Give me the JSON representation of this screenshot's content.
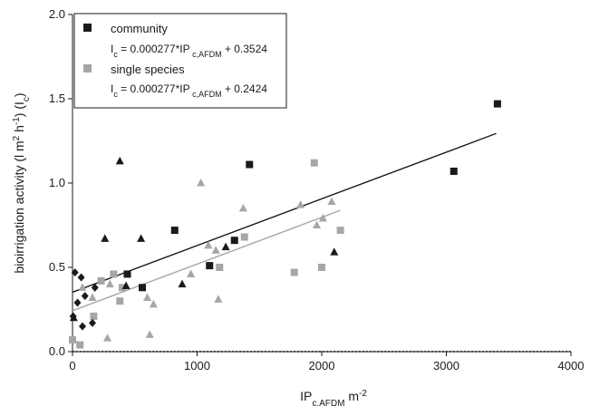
{
  "chart_data": {
    "type": "scatter",
    "xlabel": "IPc,AFDM m-2",
    "xlabel_parts": {
      "base": "IP",
      "sub": "c,AFDM",
      "unit": " m",
      "sup": "-2"
    },
    "ylabel": "bioirrigation activity (l m2 h-1) (Ic)",
    "ylabel_parts": [
      "bioirrigation activity (l m",
      "2",
      " h",
      "-1",
      ") (I",
      "c",
      ")"
    ],
    "xlim": [
      0,
      4000
    ],
    "ylim": [
      0,
      2.0
    ],
    "x_ticks": [
      0,
      1000,
      2000,
      3000,
      4000
    ],
    "x_tick_labels": [
      "0",
      "1000",
      "2000",
      "3000",
      "4000"
    ],
    "y_ticks": [
      0,
      0.5,
      1.0,
      1.5,
      2.0
    ],
    "y_tick_labels": [
      "0.0",
      "0.5",
      "1.0",
      "1.5",
      "2.0"
    ],
    "legend_placement": "top-left",
    "legend": [
      {
        "name": "community",
        "equation": {
          "i": "I",
          "isub": "c",
          "mid": " = 0.000277*IP",
          "ipsub": " c,AFDM",
          "tail": " + 0.3524"
        }
      },
      {
        "name": "single species",
        "equation": {
          "i": "I",
          "isub": "c",
          "mid": " = 0.000277*IP",
          "ipsub": " c,AFDM",
          "tail": " + 0.2424"
        }
      }
    ],
    "series": [
      {
        "name": "community",
        "color": "#1a1a1a",
        "marker": "square",
        "points": [
          [
            440,
            0.46
          ],
          [
            560,
            0.38
          ],
          [
            820,
            0.72
          ],
          [
            1100,
            0.51
          ],
          [
            1300,
            0.66
          ],
          [
            1420,
            1.11
          ],
          [
            3060,
            1.07
          ],
          [
            3410,
            1.47
          ]
        ],
        "fit": {
          "slope": 0.000277,
          "intercept": 0.3524,
          "x_range": [
            0,
            3400
          ]
        }
      },
      {
        "name": "single species",
        "color": "#a6a6a6",
        "marker": "square",
        "points": [
          [
            0,
            0.07
          ],
          [
            60,
            0.04
          ],
          [
            170,
            0.21
          ],
          [
            230,
            0.42
          ],
          [
            330,
            0.46
          ],
          [
            380,
            0.3
          ],
          [
            400,
            0.38
          ],
          [
            1180,
            0.5
          ],
          [
            1380,
            0.68
          ],
          [
            1780,
            0.47
          ],
          [
            1940,
            1.12
          ],
          [
            2000,
            0.5
          ],
          [
            2150,
            0.72
          ]
        ],
        "fit": {
          "slope": 0.000277,
          "intercept": 0.2424,
          "x_range": [
            0,
            2150
          ]
        }
      },
      {
        "name": "",
        "color": "#1a1a1a",
        "marker": "triangle",
        "points": [
          [
            10,
            0.2
          ],
          [
            260,
            0.67
          ],
          [
            380,
            1.13
          ],
          [
            430,
            0.39
          ],
          [
            550,
            0.67
          ],
          [
            880,
            0.4
          ],
          [
            1230,
            0.62
          ],
          [
            2100,
            0.59
          ]
        ]
      },
      {
        "name": "",
        "color": "#a6a6a6",
        "marker": "triangle",
        "points": [
          [
            5,
            0.07
          ],
          [
            80,
            0.38
          ],
          [
            160,
            0.32
          ],
          [
            280,
            0.08
          ],
          [
            300,
            0.4
          ],
          [
            600,
            0.32
          ],
          [
            620,
            0.1
          ],
          [
            650,
            0.28
          ],
          [
            950,
            0.46
          ],
          [
            1030,
            1.0
          ],
          [
            1090,
            0.63
          ],
          [
            1150,
            0.6
          ],
          [
            1170,
            0.31
          ],
          [
            1370,
            0.85
          ],
          [
            1830,
            0.87
          ],
          [
            1960,
            0.75
          ],
          [
            2010,
            0.79
          ],
          [
            2080,
            0.89
          ]
        ]
      },
      {
        "name": "",
        "color": "#1a1a1a",
        "marker": "diamond",
        "points": [
          [
            5,
            0.21
          ],
          [
            20,
            0.47
          ],
          [
            40,
            0.29
          ],
          [
            70,
            0.44
          ],
          [
            80,
            0.15
          ],
          [
            100,
            0.33
          ],
          [
            160,
            0.17
          ],
          [
            180,
            0.38
          ]
        ]
      }
    ]
  }
}
